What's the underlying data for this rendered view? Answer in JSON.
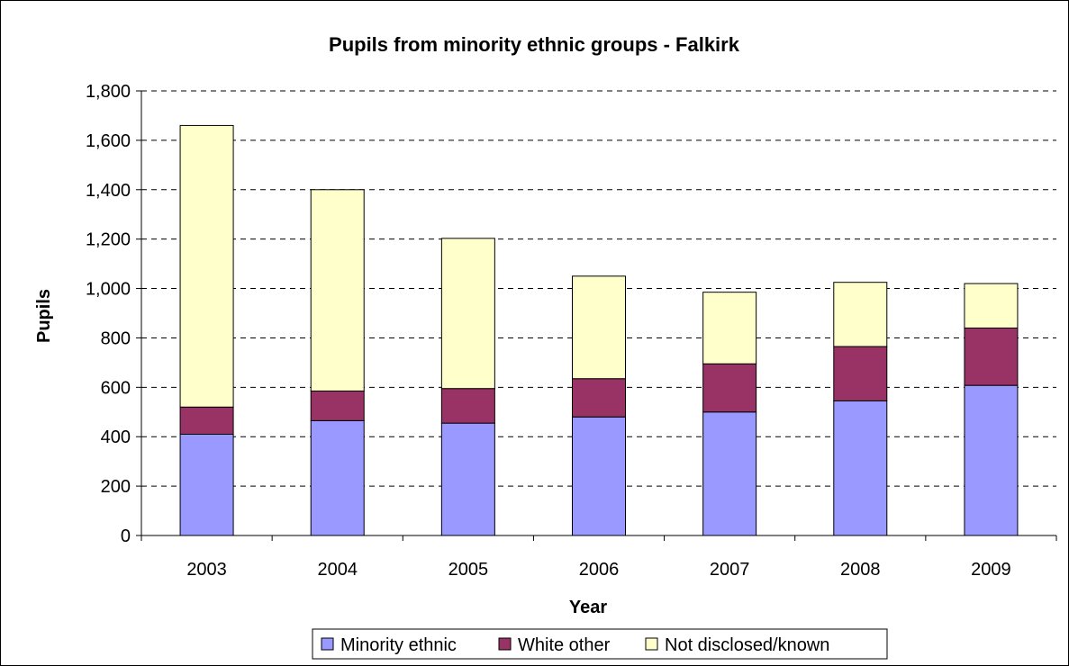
{
  "chart_data": {
    "type": "bar",
    "stacked": true,
    "title": "Pupils from minority ethnic groups - Falkirk",
    "xlabel": "Year",
    "ylabel": "Pupils",
    "categories": [
      "2003",
      "2004",
      "2005",
      "2006",
      "2007",
      "2008",
      "2009"
    ],
    "ylim": [
      0,
      1800
    ],
    "yticks": [
      0,
      200,
      400,
      600,
      800,
      1000,
      1200,
      1400,
      1600,
      1800
    ],
    "ytick_labels": [
      "0",
      "200",
      "400",
      "600",
      "800",
      "1,000",
      "1,200",
      "1,400",
      "1,600",
      "1,800"
    ],
    "grid": "horizontal dashed",
    "legend_position": "bottom",
    "series": [
      {
        "name": "Minority ethnic",
        "color": "#9999FF",
        "values": [
          410,
          465,
          455,
          480,
          500,
          545,
          608
        ]
      },
      {
        "name": "White other",
        "color": "#993366",
        "values": [
          110,
          120,
          140,
          155,
          195,
          220,
          232
        ]
      },
      {
        "name": "Not disclosed/known",
        "color": "#FFFFCC",
        "values": [
          1140,
          815,
          608,
          415,
          290,
          260,
          180
        ]
      }
    ]
  }
}
